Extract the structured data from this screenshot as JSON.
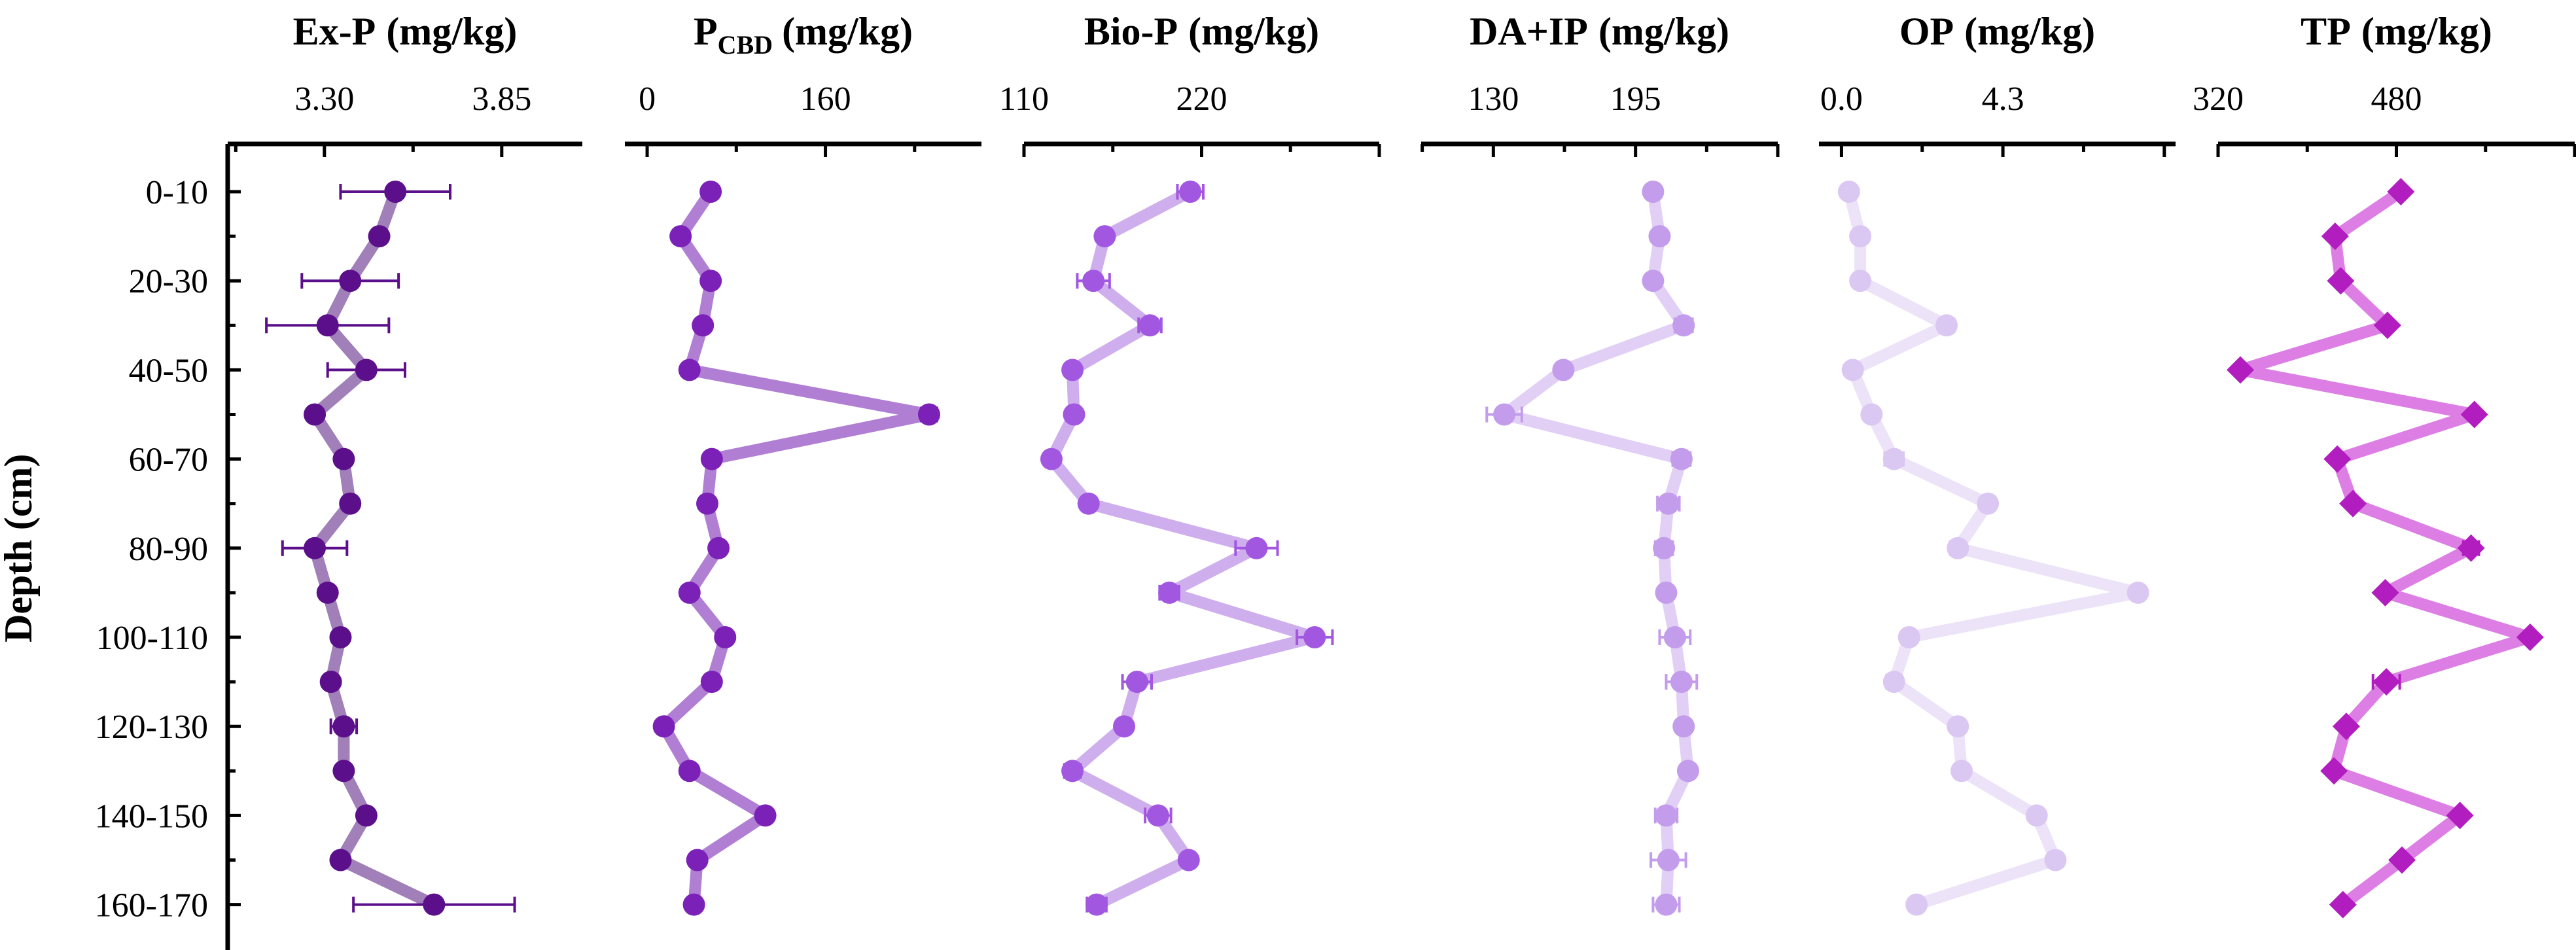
{
  "figure": {
    "y_axis_label": "Depth (cm)",
    "depth_labels": [
      "0-10",
      "20-30",
      "40-50",
      "60-70",
      "80-90",
      "100-110",
      "120-130",
      "140-150",
      "160-170"
    ]
  },
  "chart_data": [
    {
      "type": "line",
      "title": "Ex-P (mg/kg)",
      "title_main": "Ex-P",
      "title_sub": "",
      "title_unit": "(mg/kg)",
      "xlim": [
        3.0,
        4.1
      ],
      "xticks": [
        3.3,
        3.85
      ],
      "xtick_labels": [
        "3.30",
        "3.85"
      ],
      "categories": [
        "0-10",
        "10-20",
        "20-30",
        "30-40",
        "40-50",
        "50-60",
        "60-70",
        "70-80",
        "80-90",
        "90-100",
        "100-110",
        "110-120",
        "120-130",
        "130-140",
        "140-150",
        "150-160",
        "160-170"
      ],
      "values": [
        3.52,
        3.47,
        3.38,
        3.31,
        3.43,
        3.27,
        3.36,
        3.38,
        3.27,
        3.31,
        3.35,
        3.32,
        3.36,
        3.36,
        3.43,
        3.35,
        3.64
      ],
      "errors": [
        0.17,
        0,
        0.15,
        0.19,
        0.12,
        0,
        0,
        0,
        0.1,
        0,
        0.02,
        0,
        0.04,
        0.02,
        0,
        0,
        0.25
      ],
      "color": "#5c0f8b",
      "line_color": "#a17fb9",
      "marker": "circle"
    },
    {
      "type": "line",
      "title": "PCBD (mg/kg)",
      "title_main": "P",
      "title_sub": "CBD",
      "title_unit": "(mg/kg)",
      "xlim": [
        -20,
        300
      ],
      "xticks": [
        0,
        160
      ],
      "xtick_labels": [
        "0",
        "160"
      ],
      "categories": [
        "0-10",
        "10-20",
        "20-30",
        "30-40",
        "40-50",
        "50-60",
        "60-70",
        "70-80",
        "80-90",
        "90-100",
        "100-110",
        "110-120",
        "120-130",
        "130-140",
        "140-150",
        "150-160",
        "160-170"
      ],
      "values": [
        57,
        30,
        57,
        50,
        38,
        253,
        58,
        54,
        64,
        38,
        70,
        58,
        15,
        38,
        106,
        45,
        42
      ],
      "errors": [
        0,
        0,
        0,
        0,
        0,
        7,
        0,
        0,
        0,
        0,
        0,
        0,
        0,
        0,
        0,
        0,
        0
      ],
      "color": "#7b21b8",
      "line_color": "#b07fd4",
      "marker": "circle"
    },
    {
      "type": "line",
      "title": "Bio-P (mg/kg)",
      "title_main": "Bio-P",
      "title_sub": "",
      "title_unit": "(mg/kg)",
      "xlim": [
        110,
        330
      ],
      "xticks": [
        110,
        220
      ],
      "xtick_labels": [
        "110",
        "220"
      ],
      "categories": [
        "0-10",
        "10-20",
        "20-30",
        "30-40",
        "40-50",
        "50-60",
        "60-70",
        "70-80",
        "80-90",
        "90-100",
        "100-110",
        "110-120",
        "120-130",
        "130-140",
        "140-150",
        "150-160",
        "160-170"
      ],
      "values": [
        213,
        160,
        153,
        188,
        140,
        141,
        127,
        150,
        254,
        200,
        290,
        180,
        172,
        140,
        193,
        212,
        155
      ],
      "errors": [
        8,
        0,
        10,
        7,
        0,
        0,
        0,
        0,
        13,
        6,
        11,
        9,
        0,
        5,
        8,
        0,
        6
      ],
      "color": "#a257e0",
      "line_color": "#cfaeee",
      "marker": "circle"
    },
    {
      "type": "line",
      "title": "DA+IP (mg/kg)",
      "title_main": "DA+IP",
      "title_sub": "",
      "title_unit": "(mg/kg)",
      "xlim": [
        97,
        260
      ],
      "xticks": [
        130,
        195
      ],
      "xtick_labels": [
        "130",
        "195"
      ],
      "categories": [
        "0-10",
        "10-20",
        "20-30",
        "30-40",
        "40-50",
        "50-60",
        "60-70",
        "70-80",
        "80-90",
        "90-100",
        "100-110",
        "110-120",
        "120-130",
        "130-140",
        "140-150",
        "150-160",
        "160-170"
      ],
      "values": [
        203,
        206,
        203,
        217,
        162,
        135,
        216,
        210,
        208,
        209,
        213,
        216,
        217,
        219,
        209,
        210,
        209
      ],
      "errors": [
        0,
        0,
        0,
        4,
        0,
        8,
        4,
        5,
        4,
        0,
        7,
        7,
        0,
        0,
        5,
        8,
        6
      ],
      "color": "#c39ceb",
      "line_color": "#e1cff5",
      "marker": "circle"
    },
    {
      "type": "line",
      "title": "OP (mg/kg)",
      "title_main": "OP",
      "title_sub": "",
      "title_unit": "(mg/kg)",
      "xlim": [
        -0.6,
        8.9
      ],
      "xticks": [
        0.0,
        4.3
      ],
      "xtick_labels": [
        "0.0",
        "4.3"
      ],
      "categories": [
        "0-10",
        "10-20",
        "20-30",
        "30-40",
        "40-50",
        "50-60",
        "60-70",
        "70-80",
        "80-90",
        "90-100",
        "100-110",
        "110-120",
        "120-130",
        "130-140",
        "140-150",
        "150-160",
        "160-170"
      ],
      "values": [
        0.2,
        0.5,
        0.5,
        2.8,
        0.3,
        0.8,
        1.4,
        3.9,
        3.1,
        7.9,
        1.8,
        1.4,
        3.1,
        3.2,
        5.2,
        5.7,
        2.0
      ],
      "errors": [
        0,
        0,
        0,
        0.2,
        0,
        0,
        0.25,
        0,
        0.2,
        0,
        0,
        0.2,
        0,
        0.15,
        0.15,
        0.2,
        0
      ],
      "color": "#dbc8f2",
      "line_color": "#ede3f8",
      "marker": "circle"
    },
    {
      "type": "line",
      "title": "TP (mg/kg)",
      "title_main": "TP",
      "title_sub": "",
      "title_unit": "(mg/kg)",
      "xlim": [
        320,
        640
      ],
      "xticks": [
        320,
        480
      ],
      "xtick_labels": [
        "320",
        "480"
      ],
      "categories": [
        "0-10",
        "10-20",
        "20-30",
        "30-40",
        "40-50",
        "50-60",
        "60-70",
        "70-80",
        "80-90",
        "90-100",
        "100-110",
        "110-120",
        "120-130",
        "130-140",
        "140-150",
        "150-160",
        "160-170"
      ],
      "values": [
        484,
        425,
        430,
        472,
        340,
        550,
        427,
        441,
        547,
        470,
        600,
        471,
        435,
        424,
        537,
        485,
        432
      ],
      "errors": [
        0,
        0,
        0,
        0,
        0,
        0,
        0,
        0,
        7,
        0,
        0,
        12,
        0,
        0,
        0,
        0,
        0
      ],
      "color": "#b11dbf",
      "line_color": "#dd7ee4",
      "marker": "diamond"
    }
  ]
}
